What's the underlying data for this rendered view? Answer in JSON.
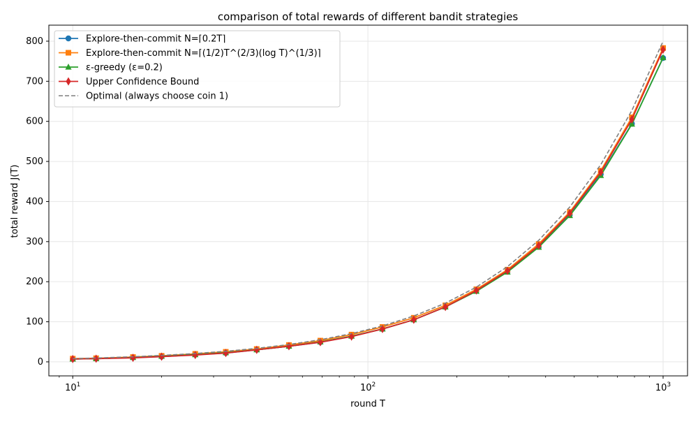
{
  "chart_data": {
    "type": "line",
    "title": "comparison of total rewards of different bandit strategies",
    "xlabel": "round T",
    "ylabel": "total reward J(T)",
    "xscale": "log",
    "xlim": [
      8.3,
      1210
    ],
    "ylim": [
      -35,
      840
    ],
    "grid": true,
    "legend_position": "top-left",
    "xticks": [
      10,
      100,
      1000
    ],
    "xtick_labels": [
      {
        "base": "10",
        "exp": "1"
      },
      {
        "base": "10",
        "exp": "2"
      },
      {
        "base": "10",
        "exp": "3"
      }
    ],
    "yticks": [
      0,
      100,
      200,
      300,
      400,
      500,
      600,
      700,
      800
    ],
    "ytick_labels": [
      "0",
      "100",
      "200",
      "300",
      "400",
      "500",
      "600",
      "700",
      "800"
    ],
    "x": [
      10,
      12,
      16,
      20,
      26,
      33,
      42,
      54,
      69,
      88,
      112,
      143,
      183,
      233,
      297,
      379,
      483,
      615,
      784,
      1000
    ],
    "series": [
      {
        "name": "Explore-then-commit N=⌈0.2T⌉",
        "color": "#1f77b4",
        "marker": "circle",
        "dashed": false,
        "values": [
          7,
          8,
          11,
          13,
          18,
          22,
          30,
          39,
          49,
          64,
          82,
          105,
          137,
          177,
          225,
          287,
          367,
          468,
          594,
          758
        ]
      },
      {
        "name": "Explore-then-commit N=⌈(1/2)T^(2/3)(log T)^(1/3)⌉",
        "color": "#ff7f0e",
        "marker": "square",
        "dashed": false,
        "values": [
          8,
          9,
          12,
          15,
          20,
          25,
          32,
          42,
          53,
          68,
          87,
          110,
          141,
          181,
          230,
          294,
          374,
          477,
          610,
          783
        ]
      },
      {
        "name": "ε-greedy (ε=0.2)",
        "color": "#2ca02c",
        "marker": "triangle",
        "dashed": false,
        "values": [
          7,
          8,
          11,
          14,
          18,
          23,
          30,
          39,
          50,
          64,
          82,
          105,
          137,
          176,
          224,
          286,
          365,
          465,
          593,
          759
        ]
      },
      {
        "name": "Upper Confidence Bound",
        "color": "#d62728",
        "marker": "diamond",
        "dashed": false,
        "values": [
          7,
          8,
          10,
          13,
          17,
          22,
          30,
          39,
          49,
          63,
          82,
          105,
          137,
          178,
          227,
          290,
          371,
          473,
          605,
          779
        ]
      },
      {
        "name": "Optimal (always choose coin 1)",
        "color": "#7f7f7f",
        "marker": "none",
        "dashed": true,
        "values": [
          8,
          9.6,
          12.8,
          16,
          20.8,
          26.4,
          33.6,
          43.2,
          55.2,
          70.4,
          89.6,
          114.4,
          146.4,
          186.4,
          237.6,
          303.2,
          386.4,
          492,
          627.2,
          800
        ]
      }
    ]
  }
}
